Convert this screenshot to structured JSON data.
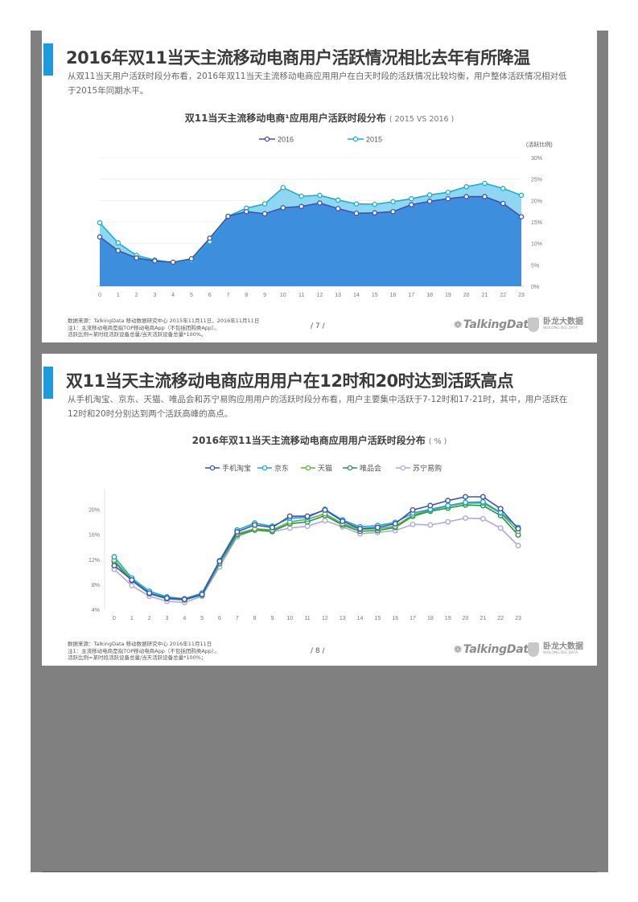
{
  "slides": [
    {
      "title": "2016年双11当天主流移动电商用户活跃情况相比去年有所降温",
      "description": "从双11当天用户活跃时段分布看，2016年双11当天主流移动电商应用用户在白天时段的活跃情况比较均衡，用户整体活跃情况相对低于2015年同期水平。",
      "chart_title": "双11当天主流移动电商¹应用用户活跃时段分布",
      "chart_unit": "( 2015 VS 2016 )",
      "footnotes": [
        "数据来源：TalkingData 移动数据研究中心 2015年11月11日，2016年11月11日",
        "注1：主流移动电商是指TOP移动电商App（不包括团购类App）。",
        "活跃比例=某时段活跃设备总量/当天活跃设备总量*100%。"
      ],
      "page_number": "/ 7 /"
    },
    {
      "title": "双11当天主流移动电商应用用户在12时和20时达到活跃高点",
      "description": "从手机淘宝、京东、天猫、唯品会和苏宁易购应用用户的活跃时段分布看，用户主要集中活跃于7-12时和17-21时，其中，用户活跃在12时和20时分别达到两个活跃高峰的高点。",
      "chart_title": "2016年双11当天主流移动电商应用用户活跃时段分布",
      "chart_unit": "( % )",
      "footnotes": [
        "数据来源：TalkingData 移动数据研究中心 2016年11月11日",
        "注1：主流移动电商是指TOP移动电商App（不包括团购类App）。",
        "活跃比例=某时段活跃设备总量/当天活跃设备总量*100%；"
      ],
      "page_number": "/ 8 /"
    }
  ],
  "brand": {
    "talkingdata": "TalkingData",
    "wolong_cn": "卧龙大数据",
    "wolong_en": "WOLONG BIG DATA"
  },
  "chart_data": [
    {
      "type": "area",
      "title": "双11当天主流移动电商¹应用用户活跃时段分布",
      "subtitle": "( 2015 VS 2016 )",
      "ylabel": "(活跃比例)",
      "x": [
        0,
        1,
        2,
        3,
        4,
        5,
        6,
        7,
        8,
        9,
        10,
        11,
        12,
        13,
        14,
        15,
        16,
        17,
        18,
        19,
        20,
        21,
        22,
        23
      ],
      "yticks": [
        "0%",
        "5%",
        "10%",
        "15%",
        "20%",
        "25%",
        "30%"
      ],
      "ylim": [
        0,
        30
      ],
      "y_axis_side": "right",
      "legend_position": "top",
      "series": [
        {
          "name": "2016",
          "color": "#3f51b5",
          "fill": "#3d8fde",
          "values": [
            11.5,
            8.3,
            6.6,
            5.9,
            5.6,
            6.4,
            11.2,
            16.3,
            17.4,
            16.9,
            18.3,
            18.6,
            19.4,
            18.1,
            17.0,
            17.1,
            17.4,
            19.0,
            19.8,
            20.4,
            20.9,
            20.9,
            19.3,
            16.2
          ]
        },
        {
          "name": "2015",
          "color": "#14b0d6",
          "fill": "#8fd6f2",
          "values": [
            14.8,
            10.1,
            7.2,
            6.1,
            5.5,
            6.1,
            10.4,
            16.3,
            18.2,
            19.2,
            23.0,
            21.0,
            21.2,
            20.1,
            19.2,
            19.1,
            19.7,
            20.4,
            21.3,
            21.9,
            23.2,
            24.0,
            22.8,
            21.2
          ]
        }
      ]
    },
    {
      "type": "line",
      "title": "2016年双11当天主流移动电商应用用户活跃时段分布",
      "subtitle": "( % )",
      "x": [
        0,
        1,
        2,
        3,
        4,
        5,
        6,
        7,
        8,
        9,
        10,
        11,
        12,
        13,
        14,
        15,
        16,
        17,
        18,
        19,
        20,
        21,
        22,
        23
      ],
      "yticks": [
        "4%",
        "8%",
        "12%",
        "16%",
        "20%"
      ],
      "ylim": [
        4,
        22
      ],
      "legend_position": "top",
      "series": [
        {
          "name": "手机淘宝",
          "color": "#3c52b8",
          "values": [
            11.0,
            8.7,
            6.6,
            5.8,
            5.6,
            6.4,
            11.7,
            16.4,
            17.5,
            17.1,
            18.9,
            18.9,
            19.9,
            18.1,
            16.9,
            17.1,
            17.7,
            19.9,
            20.6,
            21.4,
            22.0,
            22.0,
            20.1,
            16.9
          ]
        },
        {
          "name": "京东",
          "color": "#16a8cf",
          "values": [
            12.4,
            9.0,
            6.9,
            6.0,
            5.7,
            6.6,
            11.8,
            16.7,
            17.8,
            17.3,
            18.6,
            18.7,
            20.0,
            18.3,
            17.2,
            17.4,
            17.9,
            19.4,
            20.0,
            20.6,
            21.1,
            21.2,
            19.5,
            17.1
          ]
        },
        {
          "name": "天猫",
          "color": "#5ab536",
          "values": [
            11.9,
            8.7,
            6.6,
            5.8,
            5.5,
            6.4,
            11.4,
            16.1,
            16.9,
            16.7,
            18.0,
            18.4,
            19.3,
            17.7,
            16.8,
            16.9,
            17.3,
            19.1,
            19.9,
            20.5,
            21.0,
            21.0,
            19.4,
            16.5
          ]
        },
        {
          "name": "唯品会",
          "color": "#2e8b57",
          "values": [
            11.6,
            8.6,
            6.5,
            5.7,
            5.5,
            6.3,
            11.3,
            15.9,
            16.7,
            16.5,
            17.7,
            18.0,
            19.0,
            17.5,
            16.5,
            16.6,
            17.1,
            18.9,
            19.7,
            20.2,
            20.7,
            20.6,
            19.0,
            15.9
          ]
        },
        {
          "name": "苏宁易购",
          "color": "#b3a6d9",
          "values": [
            10.4,
            7.8,
            6.1,
            5.3,
            5.1,
            6.1,
            10.8,
            15.6,
            16.7,
            16.4,
            17.0,
            17.3,
            18.2,
            17.2,
            16.1,
            16.3,
            16.6,
            17.6,
            17.5,
            18.0,
            18.6,
            18.5,
            17.0,
            14.2
          ]
        }
      ]
    }
  ]
}
